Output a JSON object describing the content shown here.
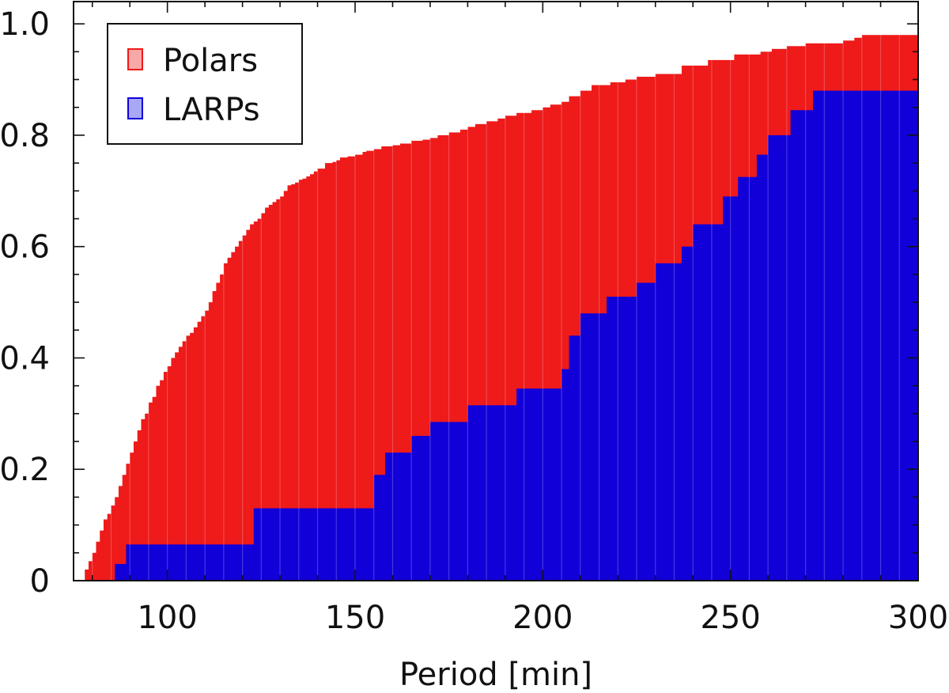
{
  "chart_data": {
    "type": "area",
    "xlabel": "Period [min]",
    "ylabel": "",
    "xlim": [
      75,
      300
    ],
    "ylim": [
      0,
      1.04
    ],
    "x_ticks": [
      100,
      150,
      200,
      250,
      300
    ],
    "x_tick_labels": [
      "100",
      "150",
      "200",
      "250",
      "300"
    ],
    "y_ticks": [
      0,
      0.2,
      0.4,
      0.6,
      0.8,
      1.0
    ],
    "y_tick_labels": [
      "0",
      "0.2",
      "0.4",
      "0.6",
      "0.8",
      "1.0"
    ],
    "grid": false,
    "legend_position": "top-left",
    "series": [
      {
        "name": "Polars",
        "color": "#ef1a1a",
        "legend_color": "#f7a8a8",
        "step_x": [
          75,
          78,
          79,
          80,
          81,
          82,
          83,
          84,
          85,
          86,
          87,
          88,
          89,
          90,
          91,
          92,
          93,
          94,
          95,
          96,
          97,
          98,
          99,
          100,
          101,
          102,
          103,
          104,
          105,
          106,
          107,
          108,
          109,
          110,
          111,
          112,
          113,
          114,
          115,
          116,
          117,
          118,
          119,
          120,
          121,
          122,
          123,
          124,
          125,
          126,
          127,
          128,
          129,
          130,
          131,
          132,
          133,
          134,
          135,
          136,
          137,
          138,
          139,
          140,
          142,
          144,
          145,
          146,
          148,
          150,
          152,
          153,
          155,
          157,
          160,
          162,
          165,
          168,
          170,
          172,
          175,
          178,
          180,
          182,
          185,
          188,
          190,
          193,
          197,
          200,
          202,
          205,
          207,
          210,
          213,
          218,
          222,
          225,
          230,
          237,
          244,
          251,
          258,
          261,
          265,
          270,
          280,
          283,
          285,
          290,
          300
        ],
        "step_y": [
          0,
          0.02,
          0.035,
          0.05,
          0.07,
          0.09,
          0.11,
          0.12,
          0.135,
          0.15,
          0.17,
          0.19,
          0.21,
          0.23,
          0.25,
          0.27,
          0.29,
          0.3,
          0.32,
          0.33,
          0.35,
          0.36,
          0.375,
          0.385,
          0.4,
          0.41,
          0.42,
          0.43,
          0.44,
          0.445,
          0.455,
          0.465,
          0.475,
          0.485,
          0.5,
          0.52,
          0.535,
          0.55,
          0.57,
          0.58,
          0.59,
          0.6,
          0.61,
          0.62,
          0.63,
          0.64,
          0.645,
          0.65,
          0.66,
          0.67,
          0.675,
          0.68,
          0.685,
          0.69,
          0.7,
          0.71,
          0.712,
          0.715,
          0.72,
          0.722,
          0.726,
          0.73,
          0.735,
          0.74,
          0.75,
          0.752,
          0.755,
          0.76,
          0.762,
          0.765,
          0.77,
          0.772,
          0.775,
          0.78,
          0.782,
          0.785,
          0.79,
          0.792,
          0.795,
          0.8,
          0.805,
          0.81,
          0.815,
          0.82,
          0.825,
          0.83,
          0.835,
          0.84,
          0.845,
          0.85,
          0.855,
          0.86,
          0.87,
          0.88,
          0.89,
          0.895,
          0.9,
          0.905,
          0.91,
          0.925,
          0.935,
          0.945,
          0.95,
          0.955,
          0.96,
          0.965,
          0.97,
          0.975,
          0.98,
          0.98,
          0.98
        ]
      },
      {
        "name": "LARPs",
        "color": "#1200d9",
        "legend_color": "#a8a8f5",
        "step_x": [
          75,
          86,
          89,
          120,
          123,
          152,
          155,
          158,
          165,
          170,
          180,
          193,
          205,
          207,
          210,
          217,
          225,
          230,
          237,
          240,
          248,
          252,
          257,
          260,
          266,
          272,
          300
        ],
        "step_y": [
          0,
          0.03,
          0.065,
          0.065,
          0.13,
          0.13,
          0.19,
          0.23,
          0.26,
          0.285,
          0.315,
          0.345,
          0.38,
          0.44,
          0.48,
          0.51,
          0.535,
          0.57,
          0.6,
          0.64,
          0.69,
          0.725,
          0.765,
          0.8,
          0.845,
          0.88,
          0.91
        ]
      }
    ]
  }
}
